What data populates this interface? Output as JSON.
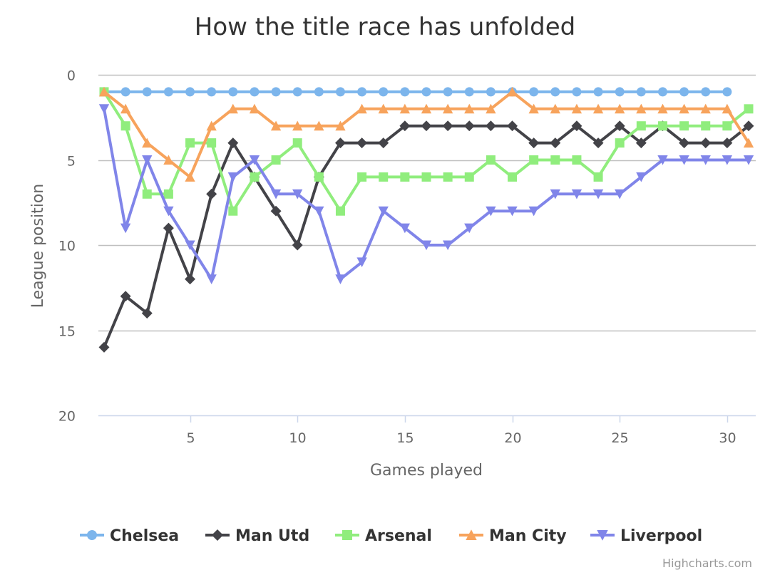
{
  "chart_data": {
    "type": "line",
    "title": "How the title race has unfolded",
    "xlabel": "Games played",
    "ylabel": "League position",
    "x": [
      1,
      2,
      3,
      4,
      5,
      6,
      7,
      8,
      9,
      10,
      11,
      12,
      13,
      14,
      15,
      16,
      17,
      18,
      19,
      20,
      21,
      22,
      23,
      24,
      25,
      26,
      27,
      28,
      29,
      30,
      31
    ],
    "xlim": [
      1,
      31
    ],
    "ylim": [
      0,
      20
    ],
    "y_reversed": true,
    "x_ticks": [
      "5",
      "10",
      "15",
      "20",
      "25",
      "30"
    ],
    "y_ticks": [
      "0",
      "5",
      "10",
      "15",
      "20"
    ],
    "grid": "horizontal",
    "legend_position": "bottom",
    "series": [
      {
        "name": "Chelsea",
        "color": "#7cb5ec",
        "marker": "circle",
        "values": [
          1,
          1,
          1,
          1,
          1,
          1,
          1,
          1,
          1,
          1,
          1,
          1,
          1,
          1,
          1,
          1,
          1,
          1,
          1,
          1,
          1,
          1,
          1,
          1,
          1,
          1,
          1,
          1,
          1,
          1,
          null
        ]
      },
      {
        "name": "Man Utd",
        "color": "#434348",
        "marker": "diamond",
        "values": [
          16,
          13,
          14,
          9,
          12,
          7,
          4,
          6,
          8,
          10,
          6,
          4,
          4,
          4,
          3,
          3,
          3,
          3,
          3,
          3,
          4,
          4,
          3,
          4,
          3,
          4,
          3,
          4,
          4,
          4,
          3
        ]
      },
      {
        "name": "Arsenal",
        "color": "#90ed7d",
        "marker": "square",
        "values": [
          1,
          3,
          7,
          7,
          4,
          4,
          8,
          6,
          5,
          4,
          6,
          8,
          6,
          6,
          6,
          6,
          6,
          6,
          5,
          6,
          5,
          5,
          5,
          6,
          4,
          3,
          3,
          3,
          3,
          3,
          2
        ]
      },
      {
        "name": "Man City",
        "color": "#f7a35c",
        "marker": "triangle",
        "values": [
          1,
          2,
          4,
          5,
          6,
          3,
          2,
          2,
          3,
          3,
          3,
          3,
          2,
          2,
          2,
          2,
          2,
          2,
          2,
          1,
          2,
          2,
          2,
          2,
          2,
          2,
          2,
          2,
          2,
          2,
          4
        ]
      },
      {
        "name": "Liverpool",
        "color": "#8085e9",
        "marker": "triangle-down",
        "values": [
          2,
          9,
          5,
          8,
          10,
          12,
          6,
          5,
          7,
          7,
          8,
          12,
          11,
          8,
          9,
          10,
          10,
          9,
          8,
          8,
          8,
          7,
          7,
          7,
          7,
          6,
          5,
          5,
          5,
          5,
          5
        ]
      }
    ]
  },
  "credits": "Highcharts.com"
}
